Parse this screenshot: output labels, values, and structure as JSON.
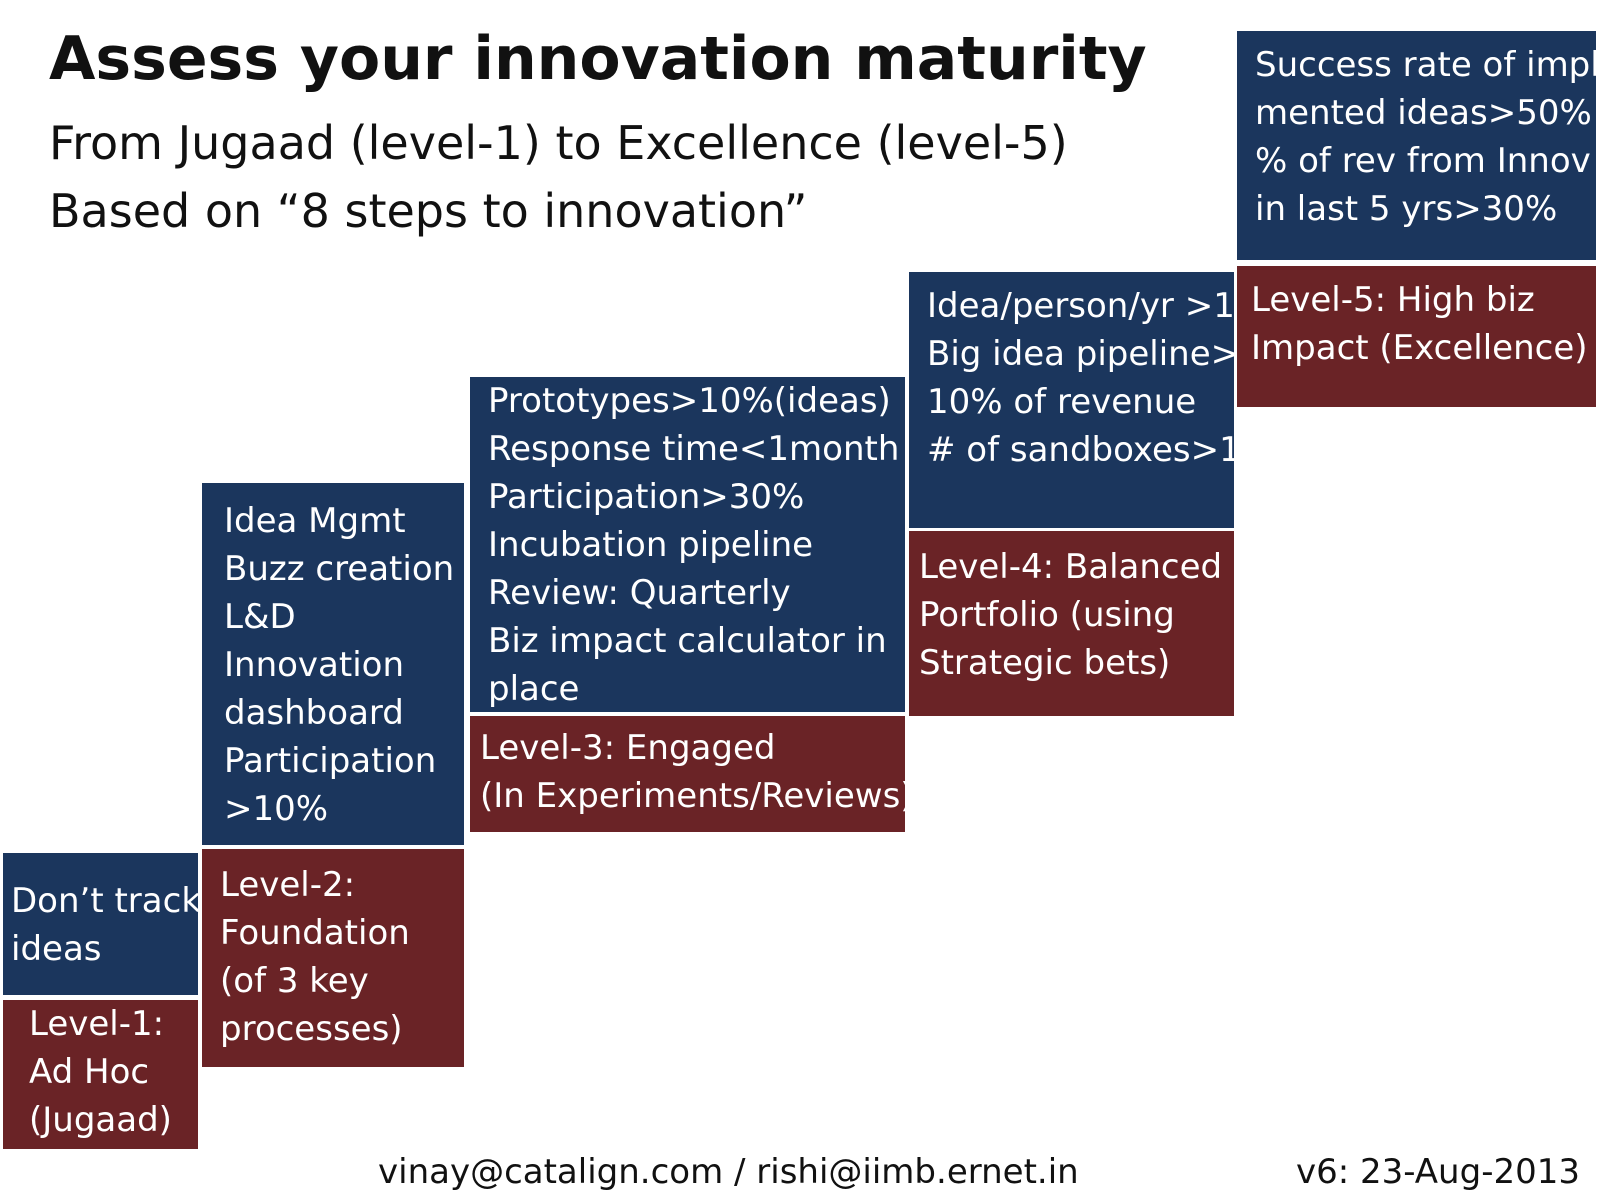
{
  "header": {
    "title": "Assess your innovation maturity",
    "subtitle_lines": [
      "From Jugaad (level-1) to Excellence (level-5)",
      "Based on “8 steps to innovation”"
    ]
  },
  "levels": [
    {
      "criteria": [
        "Don’t track",
        "ideas"
      ],
      "label": [
        "Level-1:",
        "Ad Hoc",
        "(Jugaad)"
      ]
    },
    {
      "criteria": [
        "Idea Mgmt",
        "Buzz creation",
        "L&D",
        "Innovation",
        "dashboard",
        "Participation",
        ">10%"
      ],
      "label": [
        "Level-2:",
        "Foundation",
        "(of 3 key",
        "processes)"
      ]
    },
    {
      "criteria": [
        "Prototypes>10%(ideas)",
        "Response time<1month",
        "Participation>30%",
        "Incubation pipeline",
        "Review:  Quarterly",
        "Biz impact calculator in",
        "place"
      ],
      "label": [
        "Level-3: Engaged",
        "(In Experiments/Reviews)"
      ]
    },
    {
      "criteria": [
        "Idea/person/yr >1",
        "Big idea pipeline>",
        "10% of revenue",
        "# of sandboxes>1"
      ],
      "label": [
        "Level-4: Balanced",
        "Portfolio (using",
        "Strategic bets)"
      ]
    },
    {
      "criteria": [
        "Success rate of imple",
        "mented ideas>50%",
        "% of rev from Innov",
        "in last 5 yrs>30%"
      ],
      "label": [
        "Level-5: High biz",
        "Impact (Excellence)"
      ]
    }
  ],
  "footer": {
    "contact": "vinay@catalign.com / rishi@iimb.ernet.in",
    "version": "v6: 23-Aug-2013"
  }
}
